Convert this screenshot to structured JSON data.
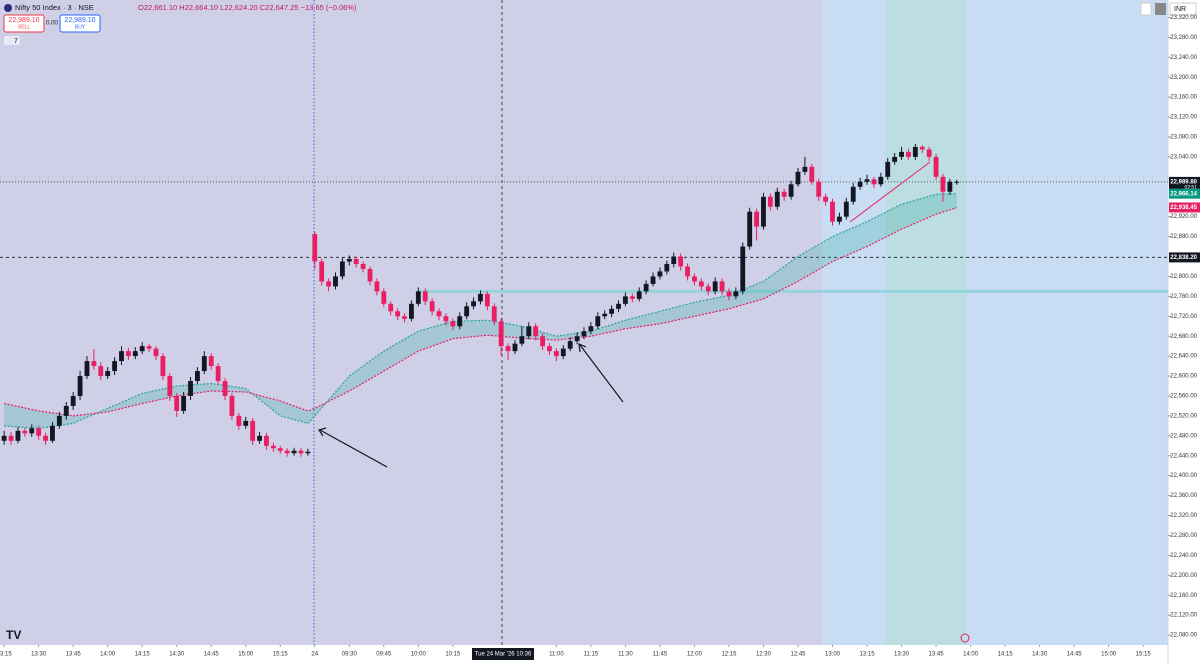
{
  "header": {
    "symbol": "Nifty 50 Index · 3 · NSE",
    "ohlc": "O22,661.10 H22,664.10 L22,624.20 C22,647.25 −13.65 (−0.06%)",
    "sell_price": "22,989.10",
    "sell": "SELL",
    "spread": "0.00",
    "buy_price": "22,989.10",
    "buy": "BUY",
    "indicators": "7",
    "currency": "INR",
    "countdown": "02:51"
  },
  "chart_data": {
    "type": "candlestick",
    "up_color": "#131722",
    "down_color": "#e91e63",
    "candles": [
      [
        22470,
        22490,
        22462,
        22480
      ],
      [
        22480,
        22488,
        22462,
        22470
      ],
      [
        22470,
        22498,
        22465,
        22490
      ],
      [
        22490,
        22496,
        22478,
        22485
      ],
      [
        22485,
        22503,
        22478,
        22495
      ],
      [
        22495,
        22500,
        22472,
        22480
      ],
      [
        22480,
        22486,
        22462,
        22470
      ],
      [
        22470,
        22508,
        22466,
        22500
      ],
      [
        22500,
        22528,
        22494,
        22520
      ],
      [
        22520,
        22548,
        22512,
        22540
      ],
      [
        22540,
        22568,
        22532,
        22560
      ],
      [
        22560,
        22610,
        22552,
        22600
      ],
      [
        22600,
        22640,
        22594,
        22630
      ],
      [
        22630,
        22654,
        22612,
        22620
      ],
      [
        22620,
        22628,
        22592,
        22600
      ],
      [
        22600,
        22618,
        22594,
        22610
      ],
      [
        22610,
        22638,
        22602,
        22630
      ],
      [
        22630,
        22660,
        22622,
        22650
      ],
      [
        22650,
        22656,
        22632,
        22640
      ],
      [
        22640,
        22658,
        22634,
        22650
      ],
      [
        22650,
        22668,
        22644,
        22660
      ],
      [
        22660,
        22665,
        22648,
        22655
      ],
      [
        22655,
        22660,
        22632,
        22640
      ],
      [
        22640,
        22646,
        22592,
        22600
      ],
      [
        22600,
        22606,
        22550,
        22560
      ],
      [
        22560,
        22566,
        22518,
        22530
      ],
      [
        22530,
        22568,
        22524,
        22560
      ],
      [
        22560,
        22598,
        22552,
        22590
      ],
      [
        22590,
        22618,
        22584,
        22610
      ],
      [
        22610,
        22650,
        22604,
        22640
      ],
      [
        22640,
        22646,
        22612,
        22620
      ],
      [
        22620,
        22626,
        22582,
        22590
      ],
      [
        22590,
        22596,
        22552,
        22560
      ],
      [
        22560,
        22566,
        22512,
        22520
      ],
      [
        22520,
        22526,
        22492,
        22500
      ],
      [
        22500,
        22518,
        22494,
        22510
      ],
      [
        22510,
        22516,
        22462,
        22470
      ],
      [
        22470,
        22488,
        22464,
        22480
      ],
      [
        22480,
        22486,
        22452,
        22460
      ],
      [
        22460,
        22466,
        22448,
        22455
      ],
      [
        22455,
        22460,
        22444,
        22450
      ],
      [
        22450,
        22455,
        22438,
        22445
      ],
      [
        22445,
        22456,
        22440,
        22450
      ],
      [
        22450,
        22455,
        22438,
        22445
      ],
      [
        22445,
        22454,
        22440,
        22448
      ],
      [
        22885,
        22890,
        22815,
        22830
      ],
      [
        22830,
        22836,
        22782,
        22790
      ],
      [
        22790,
        22796,
        22770,
        22780
      ],
      [
        22780,
        22808,
        22774,
        22800
      ],
      [
        22800,
        22838,
        22794,
        22830
      ],
      [
        22830,
        22842,
        22822,
        22835
      ],
      [
        22835,
        22840,
        22818,
        22825
      ],
      [
        22825,
        22830,
        22808,
        22815
      ],
      [
        22815,
        22820,
        22782,
        22790
      ],
      [
        22790,
        22796,
        22762,
        22770
      ],
      [
        22770,
        22776,
        22738,
        22745
      ],
      [
        22745,
        22750,
        22722,
        22730
      ],
      [
        22730,
        22736,
        22712,
        22720
      ],
      [
        22720,
        22726,
        22708,
        22715
      ],
      [
        22715,
        22752,
        22710,
        22745
      ],
      [
        22745,
        22778,
        22740,
        22770
      ],
      [
        22770,
        22776,
        22742,
        22750
      ],
      [
        22750,
        22756,
        22722,
        22730
      ],
      [
        22730,
        22736,
        22712,
        22720
      ],
      [
        22720,
        22726,
        22702,
        22710
      ],
      [
        22710,
        22716,
        22692,
        22700
      ],
      [
        22700,
        22728,
        22694,
        22720
      ],
      [
        22720,
        22748,
        22714,
        22740
      ],
      [
        22740,
        22758,
        22734,
        22750
      ],
      [
        22750,
        22772,
        22744,
        22765
      ],
      [
        22765,
        22770,
        22732,
        22740
      ],
      [
        22740,
        22746,
        22702,
        22710
      ],
      [
        22710,
        22716,
        22642,
        22660
      ],
      [
        22660,
        22666,
        22632,
        22650
      ],
      [
        22650,
        22672,
        22644,
        22665
      ],
      [
        22665,
        22700,
        22660,
        22680
      ],
      [
        22680,
        22708,
        22674,
        22700
      ],
      [
        22700,
        22706,
        22672,
        22680
      ],
      [
        22680,
        22686,
        22652,
        22660
      ],
      [
        22660,
        22666,
        22642,
        22650
      ],
      [
        22650,
        22656,
        22630,
        22640
      ],
      [
        22640,
        22662,
        22634,
        22655
      ],
      [
        22655,
        22678,
        22650,
        22670
      ],
      [
        22670,
        22688,
        22664,
        22680
      ],
      [
        22680,
        22698,
        22674,
        22690
      ],
      [
        22690,
        22708,
        22684,
        22700
      ],
      [
        22700,
        22728,
        22694,
        22720
      ],
      [
        22720,
        22732,
        22714,
        22725
      ],
      [
        22725,
        22742,
        22718,
        22735
      ],
      [
        22735,
        22752,
        22728,
        22745
      ],
      [
        22745,
        22768,
        22740,
        22760
      ],
      [
        22760,
        22766,
        22748,
        22755
      ],
      [
        22755,
        22778,
        22750,
        22770
      ],
      [
        22770,
        22792,
        22764,
        22785
      ],
      [
        22785,
        22808,
        22780,
        22800
      ],
      [
        22800,
        22818,
        22794,
        22810
      ],
      [
        22810,
        22832,
        22804,
        22825
      ],
      [
        22825,
        22848,
        22818,
        22840
      ],
      [
        22840,
        22846,
        22812,
        22820
      ],
      [
        22820,
        22826,
        22792,
        22800
      ],
      [
        22800,
        22806,
        22782,
        22790
      ],
      [
        22790,
        22796,
        22772,
        22780
      ],
      [
        22780,
        22786,
        22762,
        22770
      ],
      [
        22770,
        22798,
        22764,
        22790
      ],
      [
        22790,
        22796,
        22762,
        22770
      ],
      [
        22770,
        22776,
        22752,
        22760
      ],
      [
        22760,
        22778,
        22754,
        22770
      ],
      [
        22770,
        22868,
        22764,
        22860
      ],
      [
        22860,
        22938,
        22854,
        22930
      ],
      [
        22930,
        22936,
        22872,
        22900
      ],
      [
        22900,
        22968,
        22894,
        22960
      ],
      [
        22960,
        22966,
        22932,
        22940
      ],
      [
        22940,
        22978,
        22934,
        22970
      ],
      [
        22970,
        22976,
        22952,
        22960
      ],
      [
        22960,
        22992,
        22954,
        22985
      ],
      [
        22985,
        23018,
        22980,
        23010
      ],
      [
        23010,
        23040,
        23004,
        23020
      ],
      [
        23020,
        23026,
        22984,
        22990
      ],
      [
        22990,
        22996,
        22952,
        22960
      ],
      [
        22960,
        22966,
        22942,
        22950
      ],
      [
        22950,
        22956,
        22902,
        22910
      ],
      [
        22910,
        22928,
        22904,
        22920
      ],
      [
        22920,
        22958,
        22914,
        22950
      ],
      [
        22950,
        22988,
        22944,
        22980
      ],
      [
        22980,
        22998,
        22974,
        22990
      ],
      [
        22990,
        23004,
        22984,
        22995
      ],
      [
        22995,
        23000,
        22978,
        22985
      ],
      [
        22985,
        23008,
        22980,
        23000
      ],
      [
        23000,
        23038,
        22994,
        23030
      ],
      [
        23030,
        23048,
        23024,
        23040
      ],
      [
        23040,
        23060,
        23034,
        23050
      ],
      [
        23050,
        23056,
        23034,
        23040
      ],
      [
        23040,
        23066,
        23034,
        23060
      ],
      [
        23060,
        23064,
        23048,
        23055
      ],
      [
        23055,
        23060,
        23032,
        23040
      ],
      [
        23040,
        23046,
        22994,
        23000
      ],
      [
        23000,
        23006,
        22950,
        22970
      ],
      [
        22970,
        22996,
        22964,
        22990
      ],
      [
        22990,
        22994,
        22984,
        22990
      ]
    ],
    "series": [
      {
        "color": "#26a69a",
        "x": [
          0,
          5,
          10,
          15,
          20,
          25,
          30,
          35,
          40,
          44,
          45,
          50,
          55,
          60,
          65,
          70,
          75,
          80,
          85,
          90,
          95,
          100,
          105,
          110,
          115,
          120,
          125,
          130,
          135,
          138
        ],
        "values": [
          22500,
          22495,
          22505,
          22535,
          22565,
          22580,
          22585,
          22575,
          22520,
          22505,
          22520,
          22600,
          22650,
          22690,
          22710,
          22712,
          22700,
          22680,
          22690,
          22712,
          22730,
          22748,
          22762,
          22790,
          22840,
          22880,
          22910,
          22945,
          22965,
          22966
        ]
      },
      {
        "color": "#e91e63",
        "x": [
          0,
          5,
          10,
          15,
          20,
          25,
          30,
          35,
          40,
          44,
          45,
          50,
          55,
          60,
          65,
          70,
          75,
          80,
          85,
          90,
          95,
          100,
          105,
          110,
          115,
          120,
          125,
          130,
          135,
          138
        ],
        "values": [
          22545,
          22530,
          22520,
          22528,
          22545,
          22560,
          22570,
          22568,
          22550,
          22530,
          22535,
          22570,
          22610,
          22650,
          22675,
          22682,
          22676,
          22672,
          22680,
          22695,
          22705,
          22720,
          22735,
          22755,
          22790,
          22830,
          22860,
          22895,
          22925,
          22938
        ]
      }
    ],
    "ylim": [
      22060,
      23355
    ],
    "xlim": [
      -0.6,
      168.6
    ],
    "yticks": [
      {
        "value": 22080,
        "label": "22,080.00"
      },
      {
        "value": 22120,
        "label": "22,120.00"
      },
      {
        "value": 22160,
        "label": "22,160.00"
      },
      {
        "value": 22200,
        "label": "22,200.00"
      },
      {
        "value": 22240,
        "label": "22,240.00"
      },
      {
        "value": 22280,
        "label": "22,280.00"
      },
      {
        "value": 22320,
        "label": "22,320.00"
      },
      {
        "value": 22360,
        "label": "22,360.00"
      },
      {
        "value": 22400,
        "label": "22,400.00"
      },
      {
        "value": 22440,
        "label": "22,440.00"
      },
      {
        "value": 22480,
        "label": "22,480.00"
      },
      {
        "value": 22520,
        "label": "22,520.00"
      },
      {
        "value": 22560,
        "label": "22,560.00"
      },
      {
        "value": 22600,
        "label": "22,600.00"
      },
      {
        "value": 22640,
        "label": "22,640.00"
      },
      {
        "value": 22680,
        "label": "22,680.00"
      },
      {
        "value": 22720,
        "label": "22,720.00"
      },
      {
        "value": 22760,
        "label": "22,760.00"
      },
      {
        "value": 22800,
        "label": "22,800.00"
      },
      {
        "value": 22880,
        "label": "22,880.00"
      },
      {
        "value": 22920,
        "label": "22,920.00"
      },
      {
        "value": 23040,
        "label": "23,040.00"
      },
      {
        "value": 23080,
        "label": "23,080.00"
      },
      {
        "value": 23120,
        "label": "23,120.00"
      },
      {
        "value": 23160,
        "label": "23,160.00"
      },
      {
        "value": 23200,
        "label": "23,200.00"
      },
      {
        "value": 23240,
        "label": "23,240.00"
      },
      {
        "value": 23280,
        "label": "23,280.00"
      },
      {
        "value": 23320,
        "label": "23,320.00"
      }
    ],
    "xticks": [
      {
        "value": 0,
        "label": "13:15"
      },
      {
        "value": 5,
        "label": "13:30"
      },
      {
        "value": 10,
        "label": "13:45"
      },
      {
        "value": 15,
        "label": "14:00"
      },
      {
        "value": 20,
        "label": "14:15"
      },
      {
        "value": 25,
        "label": "14:30"
      },
      {
        "value": 30,
        "label": "14:45"
      },
      {
        "value": 35,
        "label": "15:00"
      },
      {
        "value": 40,
        "label": "15:15"
      },
      {
        "value": 45,
        "label": "24"
      },
      {
        "value": 50,
        "label": "09:30"
      },
      {
        "value": 55,
        "label": "09:45"
      },
      {
        "value": 60,
        "label": "10:00"
      },
      {
        "value": 65,
        "label": "10:15"
      },
      {
        "value": 80,
        "label": "11:00"
      },
      {
        "value": 85,
        "label": "11:15"
      },
      {
        "value": 90,
        "label": "11:30"
      },
      {
        "value": 95,
        "label": "11:45"
      },
      {
        "value": 100,
        "label": "12:00"
      },
      {
        "value": 105,
        "label": "12:15"
      },
      {
        "value": 110,
        "label": "12:30"
      },
      {
        "value": 115,
        "label": "12:45"
      },
      {
        "value": 120,
        "label": "13:00"
      },
      {
        "value": 125,
        "label": "13:15"
      },
      {
        "value": 130,
        "label": "13:30"
      },
      {
        "value": 135,
        "label": "13:45"
      },
      {
        "value": 140,
        "label": "14:00"
      },
      {
        "value": 145,
        "label": "14:15"
      },
      {
        "value": 150,
        "label": "14:30"
      },
      {
        "value": 155,
        "label": "14:45"
      },
      {
        "value": 160,
        "label": "15:00"
      },
      {
        "value": 165,
        "label": "15:15"
      }
    ],
    "crosshair_label": "Tue 24 Mar '26  10:36",
    "price_labels": [
      {
        "value": 22989.8,
        "label": "22,989.80",
        "color": "#131722"
      },
      {
        "value": 22966.14,
        "label": "22,966.14",
        "color": "#089981"
      },
      {
        "value": 22938.45,
        "label": "22,938.45",
        "color": "#e91e63"
      },
      {
        "value": 22838.2,
        "label": "22,838.20",
        "color": "#131722"
      }
    ],
    "levels": [
      22838.2,
      22770
    ]
  }
}
